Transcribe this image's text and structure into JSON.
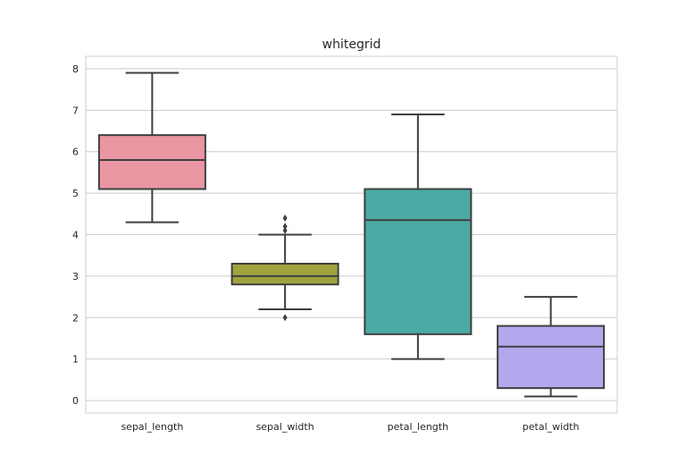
{
  "chart_data": {
    "type": "box",
    "title": "whitegrid",
    "xlabel": "",
    "ylabel": "",
    "ylim": [
      -0.3,
      8.3
    ],
    "yticks": [
      0,
      1,
      2,
      3,
      4,
      5,
      6,
      7,
      8
    ],
    "grid": true,
    "categories": [
      "sepal_length",
      "sepal_width",
      "petal_length",
      "petal_width"
    ],
    "boxes": [
      {
        "category": "sepal_length",
        "whisker_low": 4.3,
        "q1": 5.1,
        "median": 5.8,
        "q3": 6.4,
        "whisker_high": 7.9,
        "outliers": [],
        "color": "#ea96a3"
      },
      {
        "category": "sepal_width",
        "whisker_low": 2.2,
        "q1": 2.8,
        "median": 3.0,
        "q3": 3.3,
        "whisker_high": 4.0,
        "outliers": [
          4.1,
          4.2,
          4.4,
          2.0
        ],
        "color": "#a0a33d"
      },
      {
        "category": "petal_length",
        "whisker_low": 1.0,
        "q1": 1.6,
        "median": 4.35,
        "q3": 5.1,
        "whisker_high": 6.9,
        "outliers": [],
        "color": "#4baaa4"
      },
      {
        "category": "petal_width",
        "whisker_low": 0.1,
        "q1": 0.3,
        "median": 1.3,
        "q3": 1.8,
        "whisker_high": 2.5,
        "outliers": [],
        "color": "#b3a7ee"
      }
    ],
    "colors": {
      "line": "#3f3f3f",
      "grid": "#cccccc",
      "frame": "#cccccc"
    }
  }
}
